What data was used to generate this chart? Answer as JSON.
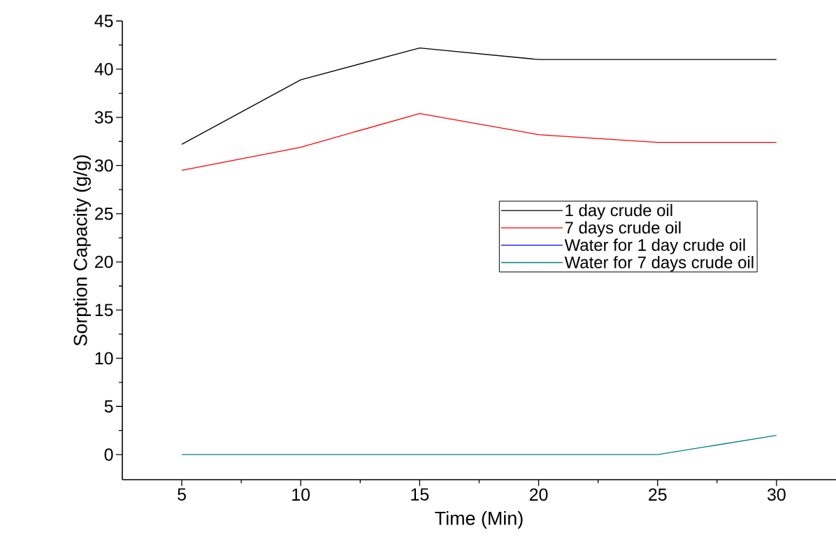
{
  "chart_data": {
    "type": "line",
    "xlabel": "Time (Min)",
    "ylabel": "Sorption Capacity (g/g)",
    "x": [
      5,
      10,
      15,
      20,
      25,
      30
    ],
    "series": [
      {
        "name": "1 day crude oil",
        "color": "#000000",
        "values": [
          32.2,
          38.9,
          42.2,
          41.0,
          41.0,
          41.0
        ]
      },
      {
        "name": "7 days crude oil",
        "color": "#ff0000",
        "values": [
          29.5,
          31.9,
          35.4,
          33.2,
          32.4,
          32.4
        ]
      },
      {
        "name": "Water for 1 day crude oil",
        "color": "#0000ff",
        "values": [
          null,
          null,
          null,
          null,
          null,
          null
        ]
      },
      {
        "name": "Water for 7 days crude oil",
        "color": "#008080",
        "values": [
          0,
          0,
          0,
          0,
          0,
          2.0
        ]
      }
    ],
    "xlim": [
      2.5,
      32.5
    ],
    "ylim": [
      -2.6,
      45
    ],
    "xticks": [
      5,
      {
        "value": 7.5,
        "label": null
      },
      10,
      {
        "value": 12.5,
        "label": null
      },
      15,
      {
        "value": 17.5,
        "label": null
      },
      20,
      {
        "value": 22.5,
        "label": null
      },
      25,
      {
        "value": 27.5,
        "label": null
      },
      30
    ],
    "yticks": [
      0,
      {
        "value": 2.5,
        "label": null
      },
      5,
      {
        "value": 7.5,
        "label": null
      },
      10,
      {
        "value": 12.5,
        "label": null
      },
      15,
      {
        "value": 17.5,
        "label": null
      },
      20,
      {
        "value": 22.5,
        "label": null
      },
      25,
      {
        "value": 27.5,
        "label": null
      },
      30,
      {
        "value": 32.5,
        "label": null
      },
      35,
      {
        "value": 37.5,
        "label": null
      },
      40,
      {
        "value": 42.5,
        "label": null
      },
      45
    ],
    "legend": "right"
  }
}
